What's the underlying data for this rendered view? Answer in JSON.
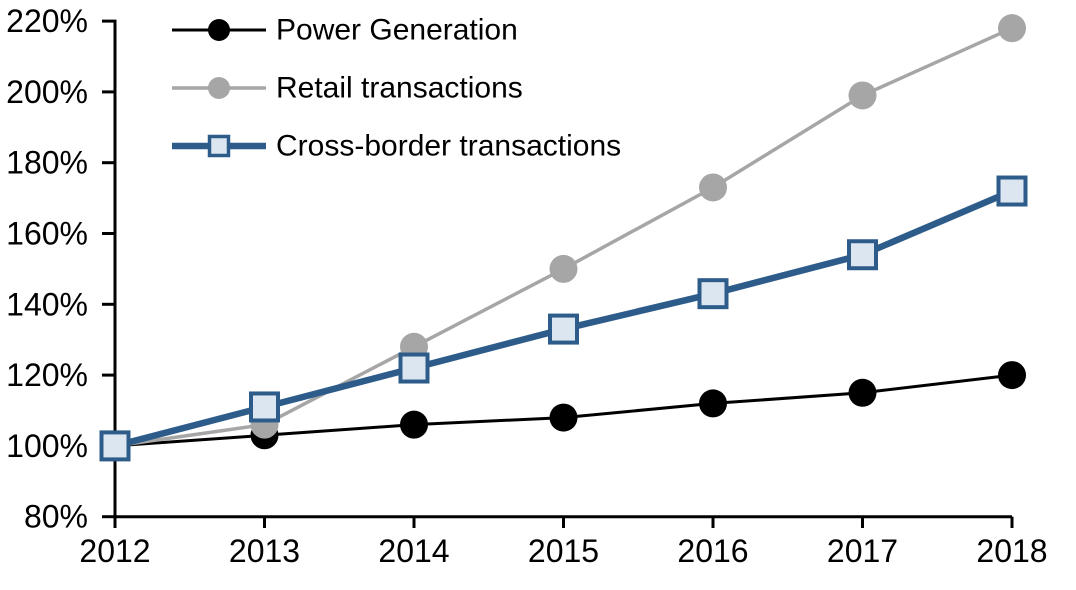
{
  "chart_data": {
    "type": "line",
    "title": "",
    "xlabel": "",
    "ylabel": "",
    "categories": [
      "2012",
      "2013",
      "2014",
      "2015",
      "2016",
      "2017",
      "2018"
    ],
    "ylim": [
      80,
      220
    ],
    "ytick_step": 20,
    "y_tick_labels": [
      "220%",
      "200%",
      "180%",
      "160%",
      "140%",
      "120%",
      "100%",
      "80%"
    ],
    "grid": false,
    "legend_position": "top-left-inside",
    "axis_color": "#000000",
    "series": [
      {
        "name": "Power Generation",
        "values": [
          100,
          103,
          106,
          108,
          112,
          115,
          120
        ],
        "line_color": "#000000",
        "line_width": 3,
        "marker": "circle",
        "marker_fill": "#000000",
        "marker_radius": 14
      },
      {
        "name": "Retail transactions",
        "values": [
          100,
          106,
          128,
          150,
          173,
          199,
          218
        ],
        "line_color": "#a6a6a6",
        "line_width": 3.5,
        "marker": "circle",
        "marker_fill": "#a6a6a6",
        "marker_radius": 14
      },
      {
        "name": "Cross-border transactions",
        "values": [
          100,
          111,
          122,
          133,
          143,
          154,
          172
        ],
        "line_color": "#2e5c8a",
        "line_width": 6.5,
        "marker": "square",
        "marker_fill": "#dce6f1",
        "marker_border": "#2e5c8a",
        "marker_border_width": 4,
        "marker_size": 27
      }
    ]
  }
}
